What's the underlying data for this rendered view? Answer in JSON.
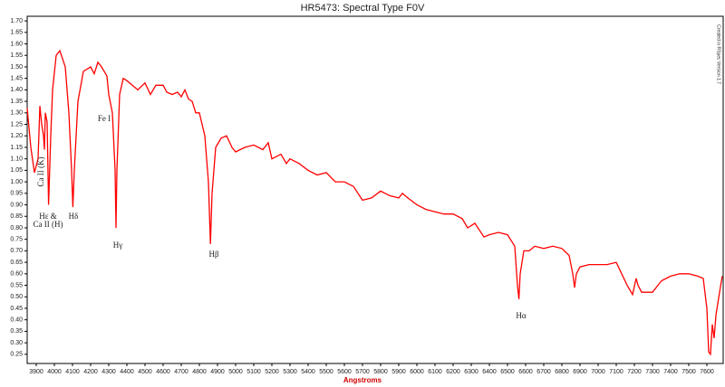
{
  "chart_data": {
    "type": "line",
    "title": "HR5473: Spectral Type F0V",
    "x_label": "Angstroms",
    "credit": "Created in RSpec Version 1.7",
    "annotations": [
      "Ca II (K)",
      "Hε &",
      "Ca II (H)",
      "Hδ",
      "Fe I",
      "Hγ",
      "Hβ",
      "Hα"
    ],
    "xlim": [
      3850,
      7690
    ],
    "ylim": [
      0.21,
      1.72
    ],
    "xticks": [
      3900,
      4000,
      4100,
      4200,
      4300,
      4400,
      4500,
      4600,
      4700,
      4800,
      4900,
      5000,
      5100,
      5200,
      5300,
      5400,
      5500,
      5600,
      5700,
      5800,
      5900,
      6000,
      6100,
      6200,
      6300,
      6400,
      6500,
      6600,
      6700,
      6800,
      6900,
      7000,
      7100,
      7200,
      7300,
      7400,
      7500,
      7600
    ],
    "yticks": [
      {
        "value": 1.7,
        "label": "1.70"
      },
      1.65,
      {
        "value": 1.6,
        "label": "1.60"
      },
      1.55,
      {
        "value": 1.5,
        "label": "1.50"
      },
      1.45,
      {
        "value": 1.4,
        "label": "1.40"
      },
      1.35,
      {
        "value": 1.3,
        "label": "1.30"
      },
      1.25,
      {
        "value": 1.2,
        "label": "1.20"
      },
      1.15,
      {
        "value": 1.1,
        "label": "1.10"
      },
      1.05,
      {
        "value": 1,
        "label": "1.00"
      },
      0.95,
      {
        "value": 0.9,
        "label": "0.90"
      },
      0.85,
      {
        "value": 0.8,
        "label": "0.80"
      },
      0.75,
      {
        "value": 0.7,
        "label": "0.70"
      },
      0.65,
      {
        "value": 0.6,
        "label": "0.60"
      },
      0.55,
      {
        "value": 0.5,
        "label": "0.50"
      },
      0.45,
      {
        "value": 0.4,
        "label": "0.40"
      },
      0.35,
      {
        "value": 0.3,
        "label": "0.30"
      },
      0.25
    ],
    "x": [
      3850,
      3870,
      3890,
      3910,
      3920,
      3930,
      3940,
      3945,
      3950,
      3960,
      3968,
      3980,
      3990,
      4010,
      4030,
      4060,
      4080,
      4095,
      4102,
      4110,
      4130,
      4160,
      4200,
      4220,
      4240,
      4260,
      4290,
      4300,
      4320,
      4335,
      4340,
      4345,
      4360,
      4380,
      4400,
      4430,
      4460,
      4500,
      4530,
      4560,
      4600,
      4620,
      4650,
      4680,
      4700,
      4720,
      4740,
      4760,
      4780,
      4800,
      4830,
      4850,
      4861,
      4870,
      4890,
      4920,
      4950,
      4980,
      5000,
      5050,
      5100,
      5150,
      5180,
      5200,
      5250,
      5280,
      5300,
      5350,
      5400,
      5450,
      5500,
      5550,
      5600,
      5650,
      5700,
      5750,
      5800,
      5850,
      5900,
      5920,
      5950,
      6000,
      6050,
      6100,
      6150,
      6200,
      6250,
      6280,
      6320,
      6370,
      6400,
      6450,
      6500,
      6540,
      6555,
      6563,
      6570,
      6590,
      6620,
      6650,
      6700,
      6750,
      6800,
      6840,
      6860,
      6870,
      6880,
      6900,
      6950,
      7000,
      7050,
      7100,
      7130,
      7160,
      7190,
      7210,
      7220,
      7240,
      7270,
      7300,
      7330,
      7350,
      7400,
      7450,
      7500,
      7550,
      7580,
      7600,
      7610,
      7620,
      7630,
      7640,
      7650,
      7670,
      7685
    ],
    "series": [
      {
        "name": "HR5473",
        "color": "#ff0000",
        "values": [
          1.32,
          1.15,
          1.04,
          1.1,
          1.33,
          1.25,
          1.2,
          1.14,
          1.3,
          1.26,
          0.9,
          1.2,
          1.4,
          1.55,
          1.57,
          1.5,
          1.3,
          1.05,
          0.89,
          1.05,
          1.35,
          1.48,
          1.5,
          1.47,
          1.52,
          1.5,
          1.46,
          1.38,
          1.3,
          1.05,
          0.8,
          1.05,
          1.38,
          1.45,
          1.44,
          1.42,
          1.4,
          1.43,
          1.38,
          1.42,
          1.42,
          1.39,
          1.38,
          1.39,
          1.37,
          1.4,
          1.36,
          1.35,
          1.3,
          1.3,
          1.2,
          1.0,
          0.73,
          0.95,
          1.15,
          1.19,
          1.2,
          1.15,
          1.13,
          1.15,
          1.16,
          1.14,
          1.17,
          1.1,
          1.12,
          1.08,
          1.1,
          1.08,
          1.05,
          1.03,
          1.04,
          1.0,
          1.0,
          0.98,
          0.92,
          0.93,
          0.96,
          0.94,
          0.93,
          0.95,
          0.93,
          0.9,
          0.88,
          0.87,
          0.86,
          0.86,
          0.84,
          0.8,
          0.82,
          0.76,
          0.77,
          0.78,
          0.77,
          0.72,
          0.55,
          0.49,
          0.6,
          0.7,
          0.7,
          0.72,
          0.71,
          0.72,
          0.71,
          0.68,
          0.6,
          0.54,
          0.6,
          0.63,
          0.64,
          0.64,
          0.64,
          0.65,
          0.6,
          0.55,
          0.51,
          0.58,
          0.55,
          0.52,
          0.52,
          0.52,
          0.55,
          0.57,
          0.59,
          0.6,
          0.6,
          0.59,
          0.58,
          0.45,
          0.26,
          0.25,
          0.38,
          0.32,
          0.42,
          0.52,
          0.59
        ]
      }
    ]
  }
}
